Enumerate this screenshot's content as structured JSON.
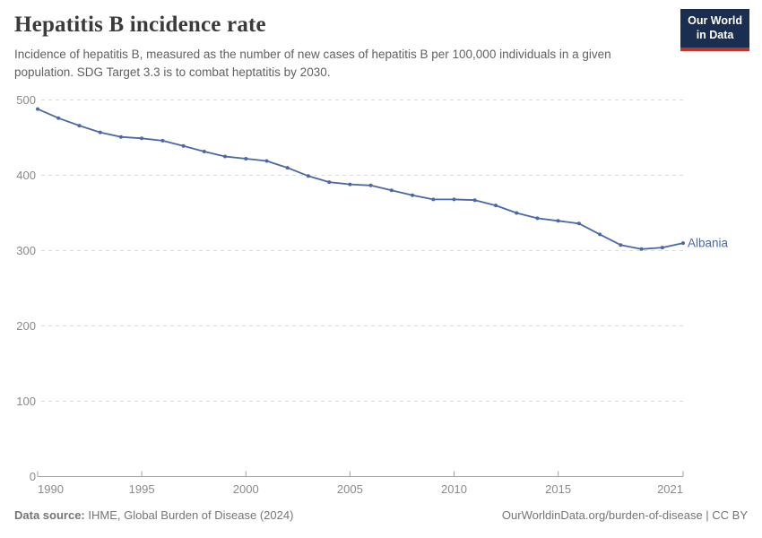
{
  "header": {
    "title": "Hepatitis B incidence rate",
    "subtitle": "Incidence of hepatitis B, measured as the number of new cases of hepatitis B per 100,000 individuals in a given population. SDG Target 3.3 is to combat heptatitis by 2030.",
    "logo": {
      "line1": "Our World",
      "line2": "in Data"
    }
  },
  "chart_data": {
    "type": "line",
    "title": "Hepatitis B incidence rate",
    "x": [
      1990,
      1991,
      1992,
      1993,
      1994,
      1995,
      1996,
      1997,
      1998,
      1999,
      2000,
      2001,
      2002,
      2003,
      2004,
      2005,
      2006,
      2007,
      2008,
      2009,
      2010,
      2011,
      2012,
      2013,
      2014,
      2015,
      2016,
      2017,
      2018,
      2019,
      2020,
      2021
    ],
    "series": [
      {
        "name": "Albania",
        "values": [
          488,
          476,
          466,
          457,
          451,
          449,
          446,
          439,
          431.5,
          425,
          422,
          419,
          410,
          399,
          391,
          388,
          386.5,
          380,
          373.5,
          368,
          368,
          367,
          360,
          350,
          343,
          339.5,
          336,
          321.5,
          307.5,
          302,
          304,
          310
        ]
      }
    ],
    "xlabel": "",
    "ylabel": "",
    "ylim": [
      0,
      500
    ],
    "yticks": [
      0,
      100,
      200,
      300,
      400,
      500
    ],
    "xticks": [
      1990,
      1995,
      2000,
      2005,
      2010,
      2015,
      2021
    ],
    "grid": "horizontal-dashed",
    "legend_position": "end-of-line-label",
    "entity_label": "Albania"
  },
  "footer": {
    "source_label": "Data source:",
    "source_text": " IHME, Global Burden of Disease (2024)",
    "credit": "OurWorldinData.org/burden-of-disease | CC BY"
  },
  "colors": {
    "line": "#4b68a5",
    "grid": "#dddddd",
    "axis": "#a3a3a3",
    "tick_label": "#8a8a8a",
    "title": "#3b3b3b",
    "subtitle": "#616161",
    "footer_text": "#757575",
    "logo_bg": "#1a2e51",
    "logo_red": "#bf352c",
    "background": "#ffffff"
  }
}
